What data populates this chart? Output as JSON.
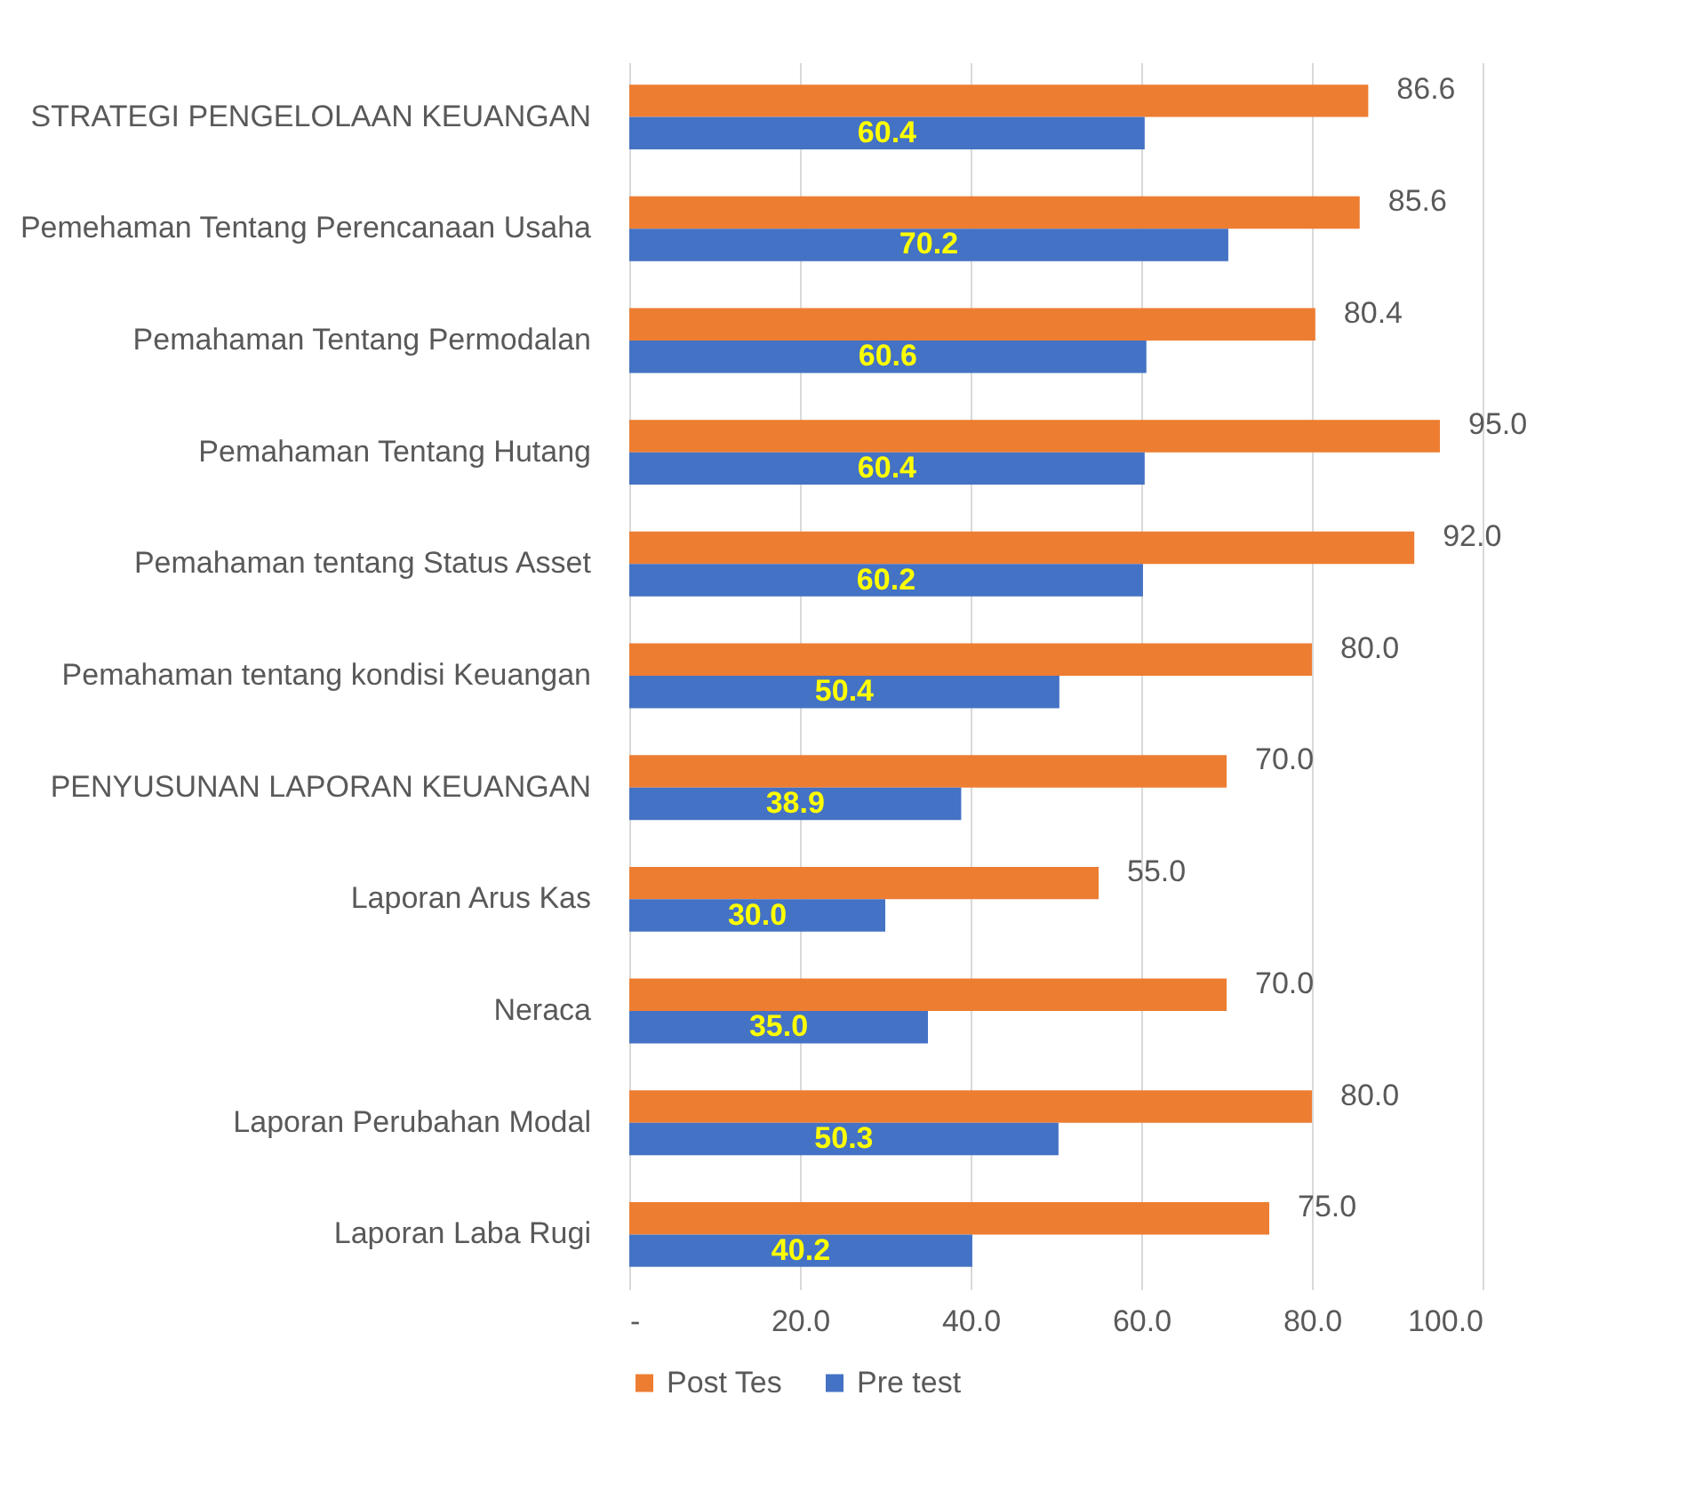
{
  "chart_data": {
    "type": "bar",
    "orientation": "horizontal",
    "categories": [
      "STRATEGI PENGELOLAAN KEUANGAN",
      "Pemehaman Tentang Perencanaan Usaha",
      "Pemahaman Tentang Permodalan",
      "Pemahaman Tentang Hutang",
      "Pemahaman tentang Status Asset",
      "Pemahaman tentang kondisi Keuangan",
      null,
      "PENYUSUNAN LAPORAN KEUANGAN",
      "Laporan Arus Kas",
      "Neraca",
      "Laporan Perubahan Modal",
      "Laporan Laba Rugi"
    ],
    "series": [
      {
        "name": "Post Tes",
        "color": "#ed7d31",
        "values": [
          86.6,
          85.6,
          80.4,
          95.0,
          92.0,
          80.0,
          null,
          70.0,
          55.0,
          70.0,
          80.0,
          75.0
        ],
        "value_labels": [
          "86.6",
          "85.6",
          "80.4",
          "95.0",
          "92.0",
          "80.0",
          null,
          "70.0",
          "55.0",
          "70.0",
          "80.0",
          "75.0"
        ]
      },
      {
        "name": "Pre test",
        "color": "#4472c4",
        "values": [
          60.4,
          70.2,
          60.6,
          60.4,
          60.2,
          50.4,
          null,
          38.9,
          30.0,
          35.0,
          50.3,
          40.2
        ],
        "value_labels": [
          "60.4",
          "70.2",
          "60.6",
          "60.4",
          "60.2",
          "50.4",
          null,
          "38.9",
          "30.0",
          "35.0",
          "50.3",
          "40.2"
        ]
      }
    ],
    "xlim": [
      0,
      100
    ],
    "xticks": [
      {
        "value": 0,
        "label": "-"
      },
      {
        "value": 20,
        "label": "20.0"
      },
      {
        "value": 40,
        "label": "40.0"
      },
      {
        "value": 60,
        "label": "60.0"
      },
      {
        "value": 80,
        "label": "80.0"
      },
      {
        "value": 100,
        "label": "100.0"
      }
    ],
    "grid": "x",
    "legend": "bottom"
  }
}
